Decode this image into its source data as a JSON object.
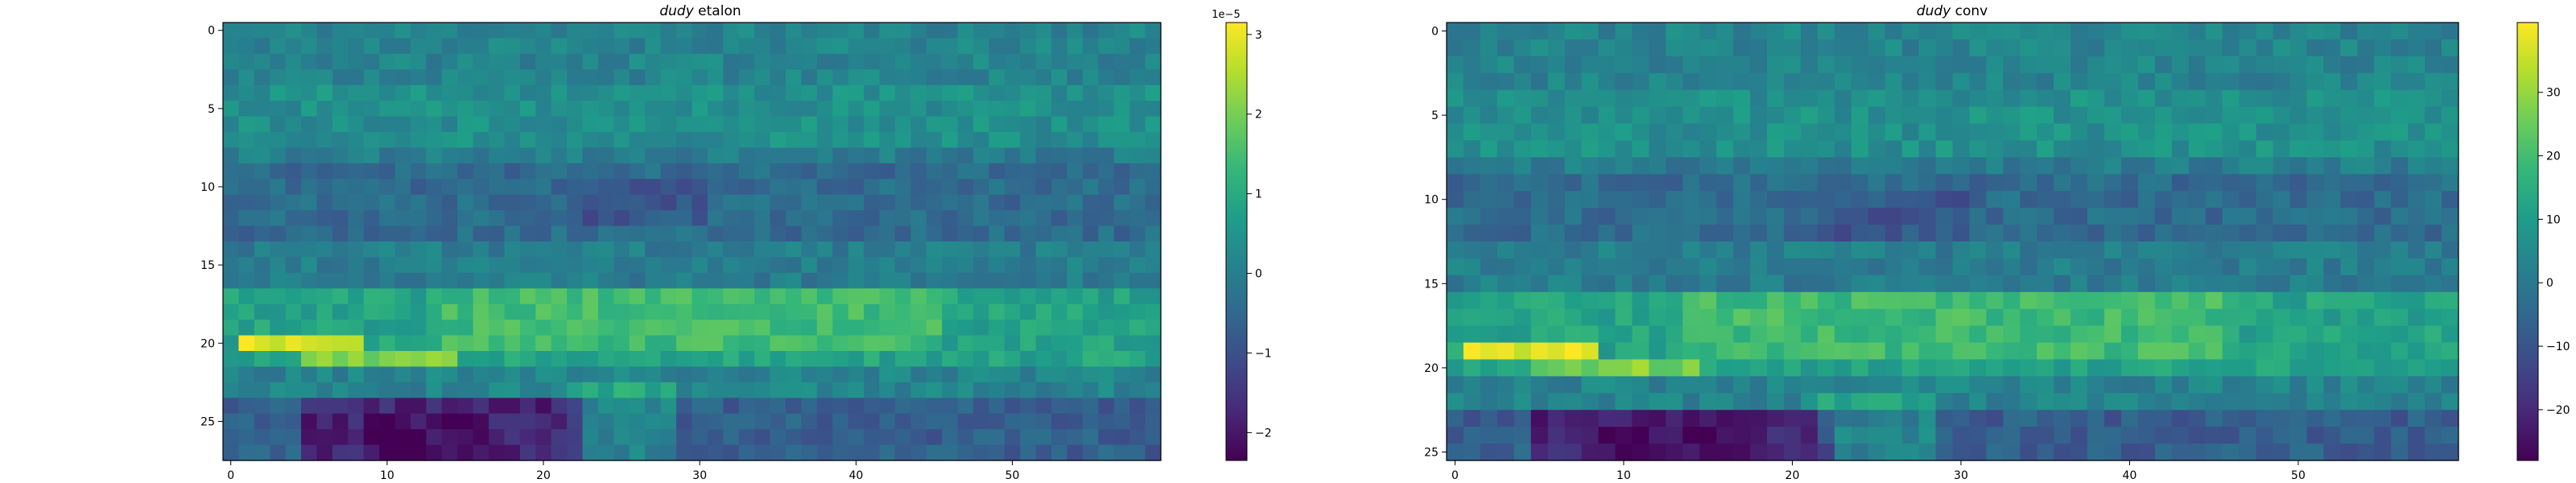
{
  "chart_data": [
    {
      "type": "heatmap",
      "title_italic": "dudy",
      "title_rest": " etalon",
      "x_range": [
        0,
        59
      ],
      "y_range": [
        0,
        27
      ],
      "rows": 28,
      "cols": 60,
      "x_ticks": [
        0,
        10,
        20,
        30,
        40,
        50
      ],
      "y_ticks": [
        0,
        5,
        10,
        15,
        20,
        25
      ],
      "colorbar": {
        "min": -2.35,
        "max": 3.15,
        "ticks": [
          -2,
          -1,
          0,
          1,
          2,
          3
        ],
        "tick_labels": [
          "−2",
          "−1",
          "0",
          "1",
          "2",
          "3"
        ],
        "offset_text": "1e−5"
      },
      "colormap": "viridis",
      "features": [
        {
          "description": "bright band",
          "row": 20,
          "col_range": [
            1,
            8
          ],
          "value": 3.0
        },
        {
          "description": "dark band",
          "row_range": [
            24,
            26
          ],
          "col_range": [
            5,
            22
          ],
          "value": -2.2
        }
      ]
    },
    {
      "type": "heatmap",
      "title_italic": "dudy",
      "title_rest": " conv",
      "x_range": [
        0,
        59
      ],
      "y_range": [
        0,
        25
      ],
      "rows": 26,
      "cols": 60,
      "x_ticks": [
        0,
        10,
        20,
        30,
        40,
        50
      ],
      "y_ticks": [
        0,
        5,
        10,
        15,
        20,
        25
      ],
      "colorbar": {
        "min": -28,
        "max": 41,
        "ticks": [
          -20,
          -10,
          0,
          10,
          20,
          30
        ],
        "tick_labels": [
          "−20",
          "−10",
          "0",
          "10",
          "20",
          "30"
        ],
        "offset_text": ""
      },
      "colormap": "viridis",
      "features": [
        {
          "description": "bright band",
          "row": 19,
          "col_range": [
            1,
            8
          ],
          "value": 38
        },
        {
          "description": "dark band",
          "row_range": [
            24,
            25
          ],
          "col_range": [
            4,
            16
          ],
          "value": -26
        }
      ]
    }
  ]
}
